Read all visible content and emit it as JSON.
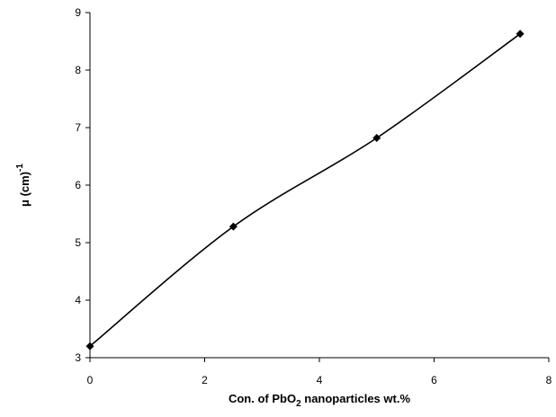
{
  "chart_data": {
    "type": "line",
    "title": "",
    "xlabel": {
      "main": "Con. of PbO",
      "subscript": "2",
      "rest": " nanoparticles wt.%"
    },
    "ylabel": {
      "main": "μ (cm)",
      "superscript": "-1"
    },
    "xlim": [
      0,
      8
    ],
    "ylim": [
      3,
      9
    ],
    "x_ticks": [
      0,
      2,
      4,
      6,
      8
    ],
    "y_ticks": [
      3,
      4,
      5,
      6,
      7,
      8,
      9
    ],
    "x_tick_labels": [
      "0",
      "2",
      "4",
      "6",
      "8"
    ],
    "y_tick_labels": [
      "3",
      "4",
      "5",
      "6",
      "7",
      "8",
      "9"
    ],
    "grid": false,
    "marker": "diamond",
    "smooth": true,
    "series": [
      {
        "x": [
          0,
          2.5,
          5,
          7.5
        ],
        "values": [
          3.2,
          5.28,
          6.82,
          8.63
        ]
      }
    ],
    "colors": {
      "line": "#000000",
      "marker": "#000000"
    }
  }
}
